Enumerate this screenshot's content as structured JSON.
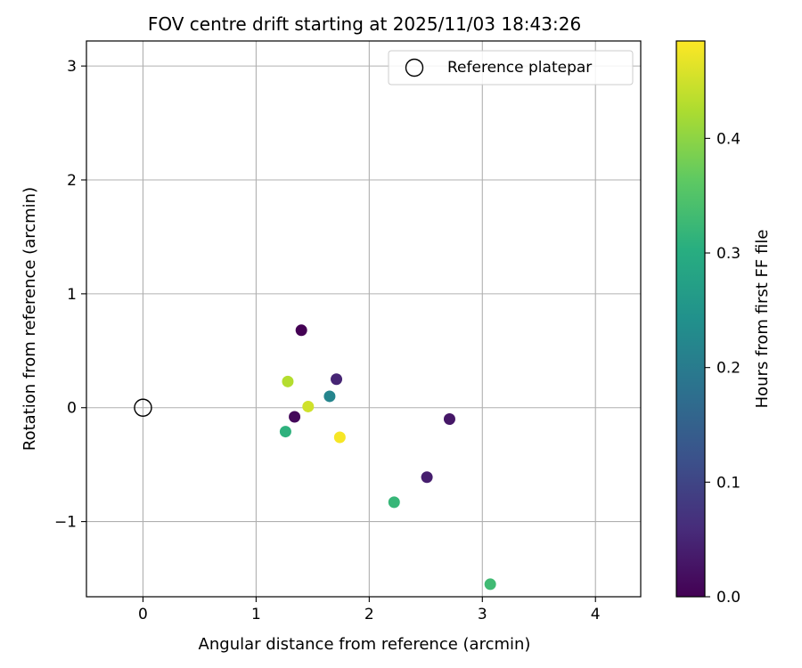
{
  "chart_data": {
    "type": "scatter",
    "title": "FOV centre drift starting at 2025/11/03 18:43:26",
    "xlabel": "Angular distance from reference (arcmin)",
    "ylabel": "Rotation from reference (arcmin)",
    "xlim": [
      -0.5,
      4.4
    ],
    "ylim": [
      -1.66,
      3.22
    ],
    "xticks": [
      0,
      1,
      2,
      3,
      4
    ],
    "xtick_labels": [
      "0",
      "1",
      "2",
      "3",
      "4"
    ],
    "yticks": [
      -1,
      0,
      1,
      2,
      3
    ],
    "ytick_labels": [
      "−1",
      "0",
      "1",
      "2",
      "3"
    ],
    "grid": true,
    "reference": {
      "x": 0,
      "y": 0
    },
    "legend": {
      "placement": "top-right",
      "label": "Reference platepar"
    },
    "colorbar": {
      "label": "Hours from first FF file",
      "min": 0.0,
      "max": 0.485,
      "ticks": [
        0.0,
        0.1,
        0.2,
        0.3,
        0.4
      ],
      "tick_labels": [
        "0.0",
        "0.1",
        "0.2",
        "0.3",
        "0.4"
      ]
    },
    "points": [
      {
        "x": 1.4,
        "y": 0.68,
        "hours": 0.0
      },
      {
        "x": 1.34,
        "y": -0.08,
        "hours": 0.01
      },
      {
        "x": 2.71,
        "y": -0.1,
        "hours": 0.03
      },
      {
        "x": 2.51,
        "y": -0.61,
        "hours": 0.04
      },
      {
        "x": 1.71,
        "y": 0.25,
        "hours": 0.05
      },
      {
        "x": 1.65,
        "y": 0.1,
        "hours": 0.22
      },
      {
        "x": 1.26,
        "y": -0.21,
        "hours": 0.31
      },
      {
        "x": 2.22,
        "y": -0.83,
        "hours": 0.32
      },
      {
        "x": 3.07,
        "y": -1.55,
        "hours": 0.33
      },
      {
        "x": 1.28,
        "y": 0.23,
        "hours": 0.43
      },
      {
        "x": 1.46,
        "y": 0.01,
        "hours": 0.45
      },
      {
        "x": 1.74,
        "y": -0.26,
        "hours": 0.48
      }
    ]
  }
}
